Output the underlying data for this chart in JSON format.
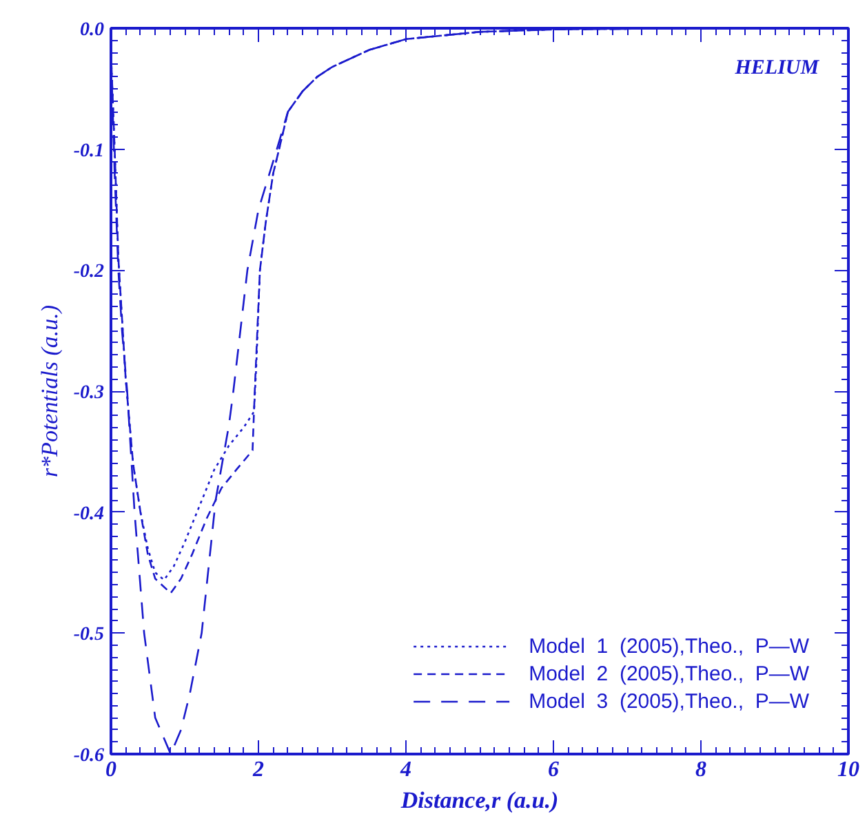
{
  "chart_data": {
    "type": "line",
    "xlabel": "Distance,r (a.u.)",
    "ylabel": "r*Potentials (a.u.)",
    "annotations": [
      "HELIUM"
    ],
    "xlim": [
      0,
      10
    ],
    "xticks": [
      0,
      2,
      4,
      6,
      8,
      10
    ],
    "ylim": [
      -0.6,
      0.0
    ],
    "yticks": [
      {
        "value": -0.6,
        "label": "-0.6"
      },
      {
        "value": -0.5,
        "label": "-0.5"
      },
      {
        "value": -0.4,
        "label": "-0.4"
      },
      {
        "value": -0.3,
        "label": "-0.3"
      },
      {
        "value": -0.2,
        "label": "-0.2"
      },
      {
        "value": -0.1,
        "label": "-0.1"
      },
      {
        "value": 0.0,
        "label": "0.0"
      }
    ],
    "grid": false,
    "legend": "bottom right",
    "marker": "none",
    "series": [
      {
        "name": "Model  1  (2005),Theo.,  P—W",
        "color": "#1a1acc",
        "line_style": "dotted",
        "x": [
          0,
          0.05,
          0.1,
          0.2,
          0.3,
          0.4,
          0.5,
          0.6,
          0.72,
          0.85,
          1.0,
          1.2,
          1.4,
          1.6,
          1.8,
          1.94,
          1.97,
          2.02,
          2.1,
          2.2,
          2.28,
          2.4,
          2.6,
          2.8,
          3.0,
          3.5,
          4,
          5,
          6,
          8,
          10
        ],
        "values": [
          -0.02,
          -0.1,
          -0.19,
          -0.29,
          -0.36,
          -0.4,
          -0.43,
          -0.45,
          -0.456,
          -0.445,
          -0.425,
          -0.395,
          -0.365,
          -0.345,
          -0.33,
          -0.317,
          -0.28,
          -0.2,
          -0.16,
          -0.12,
          -0.1,
          -0.069,
          -0.052,
          -0.04,
          -0.032,
          -0.018,
          -0.009,
          -0.003,
          -0.001,
          0,
          0
        ]
      },
      {
        "name": "Model  2  (2005),Theo.,  P—W",
        "color": "#1a1acc",
        "line_style": "dashed",
        "x": [
          0,
          0.05,
          0.1,
          0.2,
          0.3,
          0.4,
          0.5,
          0.6,
          0.81,
          0.95,
          1.1,
          1.3,
          1.5,
          1.7,
          1.92,
          1.95,
          2.02,
          2.1,
          2.2,
          2.28,
          2.4,
          2.6,
          2.8,
          3.0,
          3.5,
          4,
          5,
          6,
          8,
          10
        ],
        "values": [
          -0.02,
          -0.1,
          -0.19,
          -0.29,
          -0.36,
          -0.4,
          -0.435,
          -0.455,
          -0.467,
          -0.455,
          -0.435,
          -0.405,
          -0.38,
          -0.365,
          -0.349,
          -0.3,
          -0.2,
          -0.16,
          -0.12,
          -0.1,
          -0.069,
          -0.052,
          -0.04,
          -0.032,
          -0.018,
          -0.009,
          -0.003,
          -0.001,
          0,
          0
        ]
      },
      {
        "name": "Model  3  (2005),Theo.,  P—W",
        "color": "#1a1acc",
        "line_style": "longdash",
        "x": [
          0,
          0.05,
          0.1,
          0.15,
          0.22,
          0.32,
          0.45,
          0.6,
          0.81,
          0.95,
          1.07,
          1.23,
          1.42,
          1.6,
          1.66,
          1.85,
          2.0,
          2.25,
          2.4,
          2.6,
          2.8,
          3.0,
          3.5,
          4,
          5,
          6,
          8,
          10
        ],
        "values": [
          -0.02,
          -0.12,
          -0.2,
          -0.25,
          -0.3,
          -0.4,
          -0.5,
          -0.57,
          -0.6,
          -0.58,
          -0.55,
          -0.5,
          -0.39,
          -0.328,
          -0.3,
          -0.2,
          -0.15,
          -0.1,
          -0.069,
          -0.052,
          -0.04,
          -0.032,
          -0.018,
          -0.009,
          -0.003,
          -0.001,
          0,
          0
        ]
      }
    ]
  }
}
